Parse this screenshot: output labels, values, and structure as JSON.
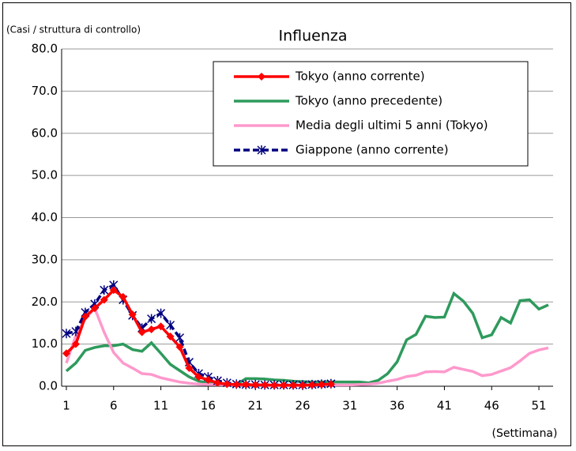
{
  "chart_data": {
    "type": "line",
    "title": "Influenza",
    "y_label": "(Casi / struttura di controllo)",
    "x_label": "(Settimana)",
    "x": [
      1,
      2,
      3,
      4,
      5,
      6,
      7,
      8,
      9,
      10,
      11,
      12,
      13,
      14,
      15,
      16,
      17,
      18,
      19,
      20,
      21,
      22,
      23,
      24,
      25,
      26,
      27,
      28,
      29,
      30,
      31,
      32,
      33,
      34,
      35,
      36,
      37,
      38,
      39,
      40,
      41,
      42,
      43,
      44,
      45,
      46,
      47,
      48,
      49,
      50,
      51,
      52
    ],
    "xlim": [
      0.5,
      52.5
    ],
    "xticks": [
      1,
      6,
      11,
      16,
      21,
      26,
      31,
      36,
      41,
      46,
      51
    ],
    "ylim": [
      0,
      80
    ],
    "yticks": [
      {
        "value": 0,
        "label": "0.0"
      },
      {
        "value": 10,
        "label": "10.0"
      },
      {
        "value": 20,
        "label": "20.0"
      },
      {
        "value": 30,
        "label": "30.0"
      },
      {
        "value": 40,
        "label": "40.0"
      },
      {
        "value": 50,
        "label": "50.0"
      },
      {
        "value": 60,
        "label": "60.0"
      },
      {
        "value": 70,
        "label": "70.0"
      },
      {
        "value": 80,
        "label": "80.0"
      }
    ],
    "grid": true,
    "legend": "upper right",
    "series": [
      {
        "name": "Tokyo (anno corrente)",
        "color": "#ff0000",
        "marker": "diamond",
        "line_style": "solid",
        "values": [
          7.8,
          10,
          16.5,
          18.5,
          20.5,
          22.8,
          21.2,
          17,
          12.8,
          13.5,
          14.2,
          11.8,
          9.3,
          4.3,
          2.2,
          1.5,
          0.8,
          0.5,
          0.4,
          0.4,
          0.3,
          0.3,
          0.2,
          0.2,
          0.2,
          0.2,
          0.3,
          0.4,
          0.5,
          null,
          null,
          null,
          null,
          null,
          null,
          null,
          null,
          null,
          null,
          null,
          null,
          null,
          null,
          null,
          null,
          null,
          null,
          null,
          null,
          null,
          null,
          null
        ]
      },
      {
        "name": "Tokyo (anno precedente)",
        "color": "#2e9a5c",
        "marker": "none",
        "line_style": "solid",
        "values": [
          3.6,
          5.5,
          8.5,
          9.2,
          9.6,
          9.6,
          10,
          8.7,
          8.3,
          10.3,
          7.8,
          5.2,
          3.7,
          2.2,
          1.2,
          0.8,
          0.5,
          0.4,
          0.4,
          1.8,
          1.8,
          1.7,
          1.5,
          1.4,
          1.2,
          1.1,
          1,
          1,
          1,
          1,
          1,
          1,
          0.8,
          1.4,
          3,
          5.8,
          11,
          12.3,
          16.6,
          16.3,
          16.4,
          22,
          20.2,
          17.3,
          11.5,
          12.2,
          16.3,
          15,
          20.3,
          20.5,
          18.3,
          19.3
        ]
      },
      {
        "name": "Media degli ultimi 5 anni (Tokyo)",
        "color": "#ff99cc",
        "marker": "none",
        "line_style": "solid",
        "values": [
          5.5,
          12,
          16,
          18.5,
          12.8,
          8,
          5.5,
          4.3,
          3,
          2.8,
          2,
          1.5,
          1,
          0.7,
          0.5,
          0.4,
          0.4,
          0.3,
          0.3,
          0.3,
          0.3,
          0.3,
          0.3,
          0.3,
          0.3,
          0.3,
          0.3,
          0.3,
          0.3,
          0.3,
          0.3,
          0.4,
          0.5,
          0.7,
          1.2,
          1.6,
          2.3,
          2.6,
          3.4,
          3.5,
          3.4,
          4.5,
          4,
          3.5,
          2.5,
          2.8,
          3.6,
          4.4,
          6,
          7.8,
          8.6,
          9.1
        ]
      },
      {
        "name": "Giappone (anno corrente)",
        "color": "#000080",
        "marker": "asterisk",
        "line_style": "dashed",
        "values": [
          12.5,
          13,
          17.5,
          19.5,
          22.8,
          24,
          20.5,
          16.8,
          13.8,
          16,
          17.3,
          14.5,
          11.5,
          5.7,
          3,
          2.2,
          1.3,
          0.8,
          0.5,
          0.4,
          0.4,
          0.3,
          0.3,
          0.3,
          0.3,
          0.3,
          0.4,
          0.5,
          0.6,
          null,
          null,
          null,
          null,
          null,
          null,
          null,
          null,
          null,
          null,
          null,
          null,
          null,
          null,
          null,
          null,
          null,
          null,
          null,
          null,
          null,
          null,
          null
        ]
      }
    ]
  }
}
